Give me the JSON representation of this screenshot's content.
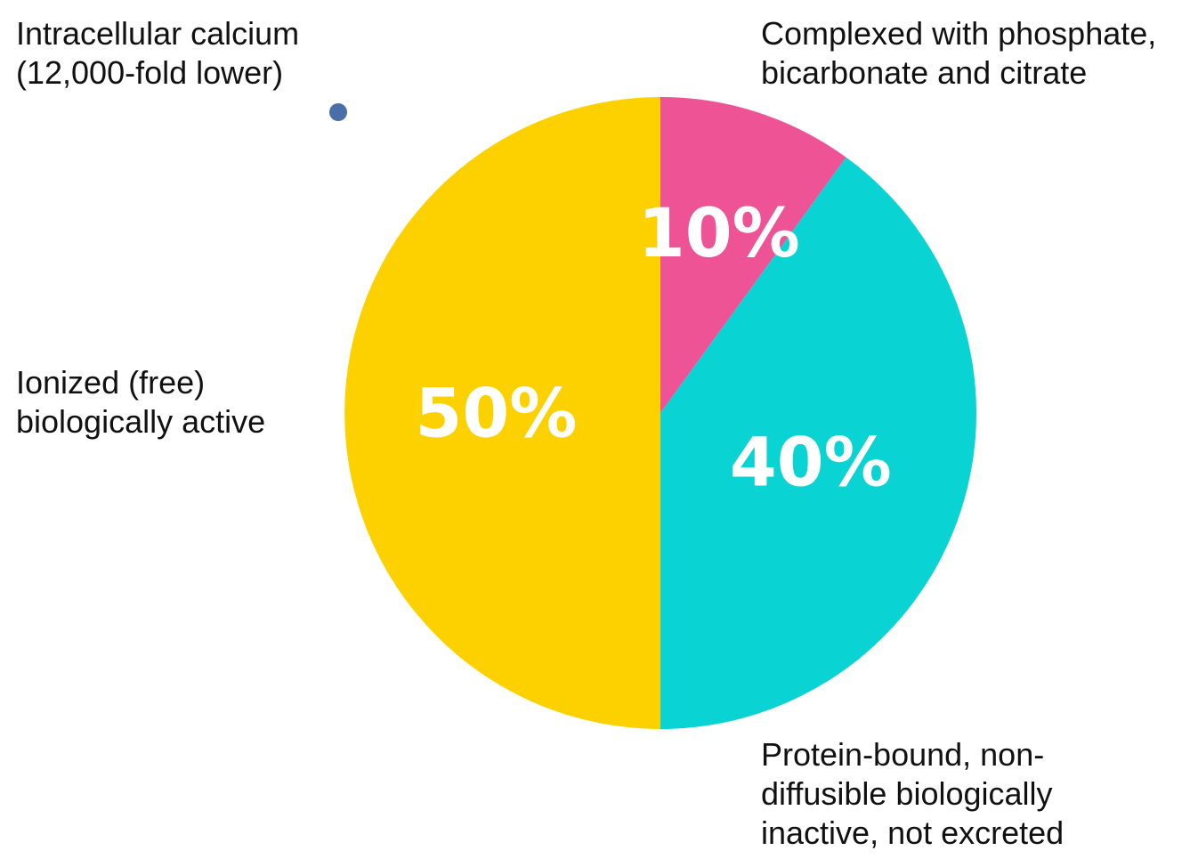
{
  "chart_data": {
    "type": "pie",
    "title": "",
    "slices": [
      {
        "id": "complexed",
        "value": 10,
        "value_label": "10%",
        "color": "#EE5396",
        "description_lines": [
          "Complexed with phosphate,",
          "bicarbonate and citrate"
        ]
      },
      {
        "id": "protein-bound",
        "value": 40,
        "value_label": "40%",
        "color": "#09D3D3",
        "description_lines": [
          "Protein-bound, non-",
          "diffusible biologically",
          "inactive, not excreted"
        ]
      },
      {
        "id": "ionized",
        "value": 50,
        "value_label": "50%",
        "color": "#FDD100",
        "description_lines": [
          "Ionized (free)",
          "biologically active"
        ]
      }
    ],
    "start_angle": "12 o'clock",
    "direction": "clockwise",
    "legend": "none"
  },
  "side_note": {
    "lines": [
      "Intracellular calcium",
      "(12,000-fold lower)"
    ],
    "bullet_color": "#4A6EA8"
  }
}
